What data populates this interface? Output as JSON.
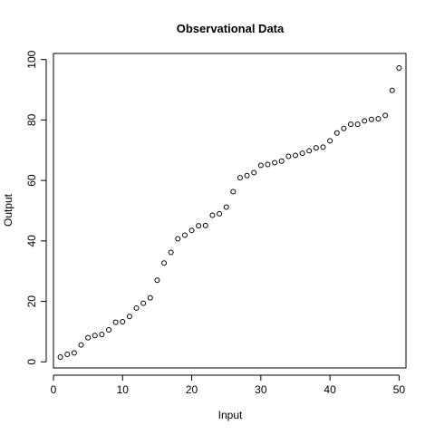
{
  "chart_data": {
    "type": "scatter",
    "title": "Observational Data",
    "xlabel": "Input",
    "ylabel": "Output",
    "xlim": [
      0,
      51
    ],
    "ylim": [
      -2,
      102
    ],
    "x_ticks": [
      0,
      10,
      20,
      30,
      40,
      50
    ],
    "y_ticks": [
      0,
      20,
      40,
      60,
      80,
      100
    ],
    "grid": false,
    "legend": "none",
    "point_color": "#000000",
    "series": [
      {
        "x": [
          1,
          2,
          3,
          4,
          5,
          6,
          7,
          8,
          9,
          10,
          11,
          12,
          13,
          14,
          15,
          16,
          17,
          18,
          19,
          20,
          21,
          22,
          23,
          24,
          25,
          26,
          27,
          28,
          29,
          30,
          31,
          32,
          33,
          34,
          35,
          36,
          37,
          38,
          39,
          40,
          41,
          42,
          43,
          44,
          45,
          46,
          47,
          48,
          49,
          50
        ],
        "y": [
          1.6,
          2.5,
          3.0,
          5.6,
          8.0,
          8.7,
          9.1,
          10.6,
          13.1,
          13.3,
          15.0,
          17.8,
          19.4,
          21.2,
          27.0,
          32.7,
          36.2,
          40.7,
          41.9,
          43.5,
          45.0,
          45.1,
          48.5,
          49.0,
          51.2,
          56.3,
          60.9,
          61.6,
          62.6,
          65.0,
          65.3,
          65.9,
          66.4,
          68.0,
          68.3,
          69.0,
          69.8,
          70.8,
          71.0,
          73.1,
          75.7,
          77.2,
          78.6,
          78.6,
          79.7,
          80.2,
          80.4,
          81.5,
          89.8,
          97.2
        ]
      }
    ]
  }
}
